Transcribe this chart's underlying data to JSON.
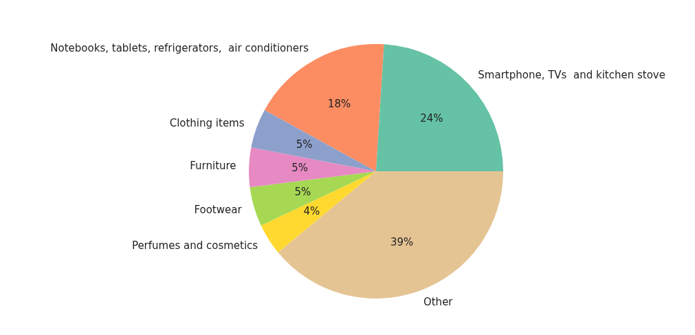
{
  "chart_data": {
    "type": "pie",
    "categories": [
      "Smartphone, TVs  and kitchen stove",
      "Notebooks, tablets, refrigerators,  air conditioners",
      "Clothing items",
      "Furniture",
      "Footwear",
      "Perfumes and cosmetics",
      "Other"
    ],
    "values": [
      24,
      18,
      5,
      5,
      5,
      4,
      39
    ],
    "colors": [
      "#66c2a5",
      "#fc8d62",
      "#8da0cb",
      "#e78ac3",
      "#a6d854",
      "#ffd92f",
      "#e5c494"
    ],
    "value_labels": [
      "24%",
      "18%",
      "5%",
      "5%",
      "5%",
      "4%",
      "39%"
    ],
    "legend": false
  }
}
